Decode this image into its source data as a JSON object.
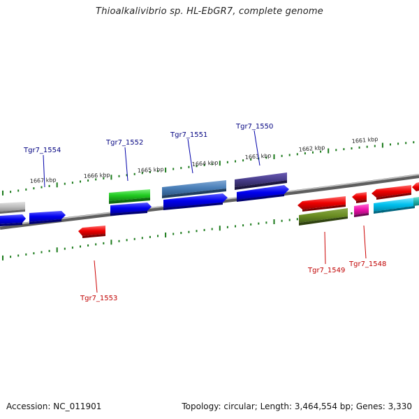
{
  "title": "Thioalkalivibrio sp. HL-EbGR7, complete genome",
  "footer": {
    "accession": "Accession: NC_011901",
    "summary": "Topology: circular; Length: 3,464,554 bp; Genes: 3,330"
  },
  "kbp_labels": [
    "1667 kbp",
    "1666 kbp",
    "1665 kbp",
    "1664 kbp",
    "1663 kbp",
    "1662 kbp",
    "1661 kbp"
  ],
  "gene_labels": [
    {
      "name": "Tgr7_1554",
      "strand": "forward",
      "color": "#000080"
    },
    {
      "name": "Tgr7_1552",
      "strand": "forward",
      "color": "#000080"
    },
    {
      "name": "Tgr7_1551",
      "strand": "forward",
      "color": "#000080"
    },
    {
      "name": "Tgr7_1550",
      "strand": "forward",
      "color": "#000080"
    },
    {
      "name": "Tgr7_1553",
      "strand": "reverse",
      "color": "#c00000"
    },
    {
      "name": "Tgr7_1549",
      "strand": "reverse",
      "color": "#c00000"
    },
    {
      "name": "Tgr7_1548",
      "strand": "reverse",
      "color": "#c00000"
    }
  ],
  "colors": {
    "cds": "#0000ee",
    "cds_reverse": "#ee0000",
    "tick": "#1a7a1a",
    "backbone": "#808080"
  }
}
